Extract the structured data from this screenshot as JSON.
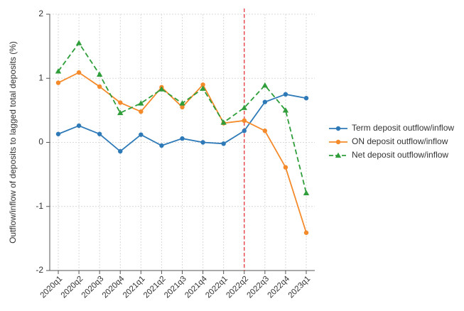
{
  "chart_data": {
    "type": "line",
    "ylabel": "Outflow/inflow of deposits to lagged total deposits (%)",
    "xlabel": "",
    "categories": [
      "2020q1",
      "2020q2",
      "2020q3",
      "2020q4",
      "2021q1",
      "2021q2",
      "2021q3",
      "2021q4",
      "2022q1",
      "2022q2",
      "2022q3",
      "2022q4",
      "2023q1"
    ],
    "ylim": [
      -2,
      2
    ],
    "yticks": [
      -2,
      -1,
      0,
      1,
      2
    ],
    "grid": true,
    "legend_position": "right",
    "reference_line": {
      "x": "2022q2",
      "color": "#e8383d",
      "style": "dashed"
    },
    "series": [
      {
        "name": "Term deposit outflow/inflow",
        "color": "#2e7ab8",
        "marker": "circle",
        "dash": "solid",
        "values": [
          0.13,
          0.26,
          0.13,
          -0.14,
          0.12,
          -0.05,
          0.06,
          0.0,
          -0.02,
          0.18,
          0.63,
          0.75,
          0.69
        ]
      },
      {
        "name": "ON deposit outflow/inflow",
        "color": "#f58a2a",
        "marker": "circle",
        "dash": "solid",
        "values": [
          0.93,
          1.09,
          0.87,
          0.62,
          0.48,
          0.86,
          0.55,
          0.9,
          0.3,
          0.34,
          0.18,
          -0.39,
          -1.41
        ]
      },
      {
        "name": "Net deposit outflow/inflow",
        "color": "#2f9e3a",
        "marker": "triangle",
        "dash": "dashed",
        "values": [
          1.11,
          1.55,
          1.06,
          0.46,
          0.61,
          0.83,
          0.61,
          0.84,
          0.31,
          0.54,
          0.89,
          0.5,
          -0.79
        ]
      }
    ]
  }
}
